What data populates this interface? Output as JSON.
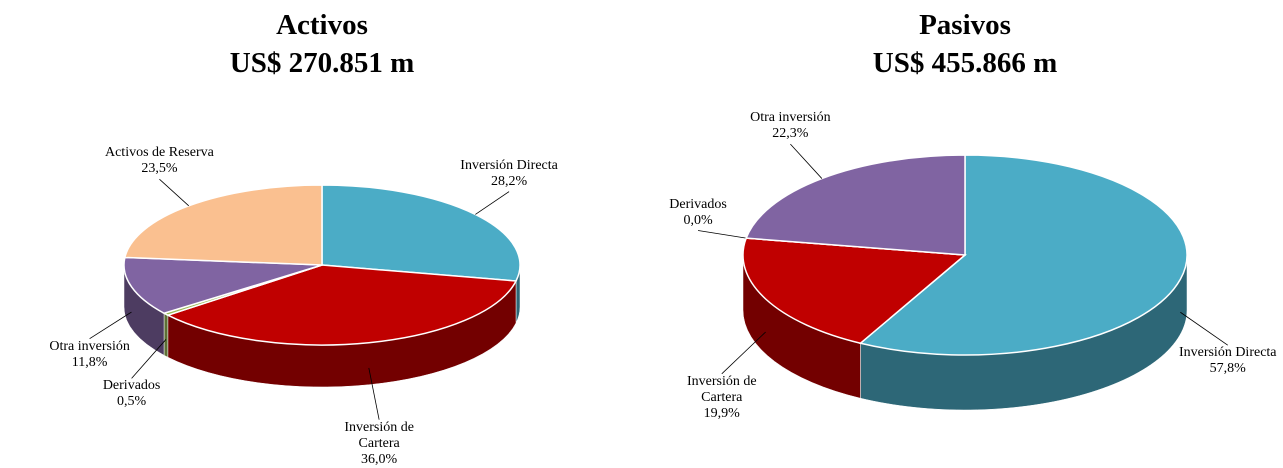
{
  "chart_data": [
    {
      "type": "pie",
      "title": "Activos",
      "subtitle": "US$ 270.851 m",
      "categories": [
        "Inversión Directa",
        "Inversión de Cartera",
        "Derivados",
        "Otra inversión",
        "Activos de Reserva"
      ],
      "values": [
        28.2,
        36.0,
        0.5,
        11.8,
        23.5
      ],
      "value_labels": [
        "28,2%",
        "36,0%",
        "0,5%",
        "11,8%",
        "23,5%"
      ],
      "colors": [
        "#4bacc6",
        "#c00000",
        "#9bbb59",
        "#8064a2",
        "#fac090"
      ]
    },
    {
      "type": "pie",
      "title": "Pasivos",
      "subtitle": "US$ 455.866 m",
      "categories": [
        "Inversión Directa",
        "Inversión de Cartera",
        "Derivados",
        "Otra inversión"
      ],
      "values": [
        57.8,
        19.9,
        0.0,
        22.3
      ],
      "value_labels": [
        "57,8%",
        "19,9%",
        "0,0%",
        "22,3%"
      ],
      "colors": [
        "#4bacc6",
        "#c00000",
        "#9bbb59",
        "#8064a2"
      ]
    }
  ]
}
